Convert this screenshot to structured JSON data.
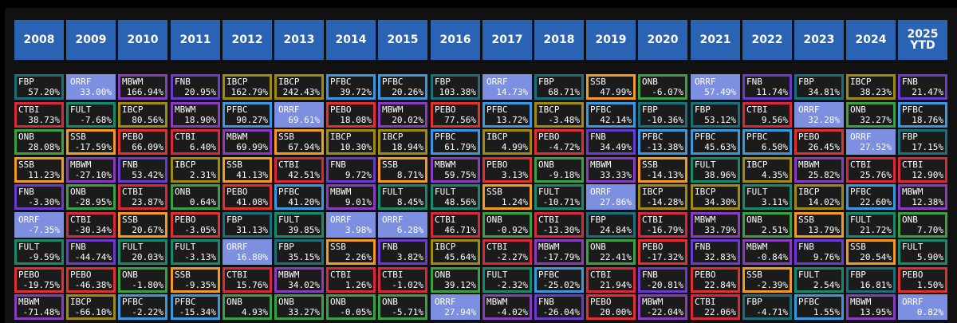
{
  "years": [
    "2008",
    "2009",
    "2010",
    "2011",
    "2012",
    "2013",
    "2014",
    "2015",
    "2016",
    "2017",
    "2018",
    "2019",
    "2020",
    "2021",
    "2022",
    "2023",
    "2024",
    "2025\nYTD"
  ],
  "ticker_colors": {
    "FBP": "#1a6f7a",
    "CTBI": "#d8283c",
    "ONB": "#3aa040",
    "SSB": "#f49a1c",
    "FNB": "#6b3ad0",
    "ORRF": "#7d8fe0",
    "FULT": "#178a6e",
    "PEBO": "#e03030",
    "MBWM": "#8a3cc0",
    "IBCP": "#a08a10",
    "PFBC": "#3a98e0"
  },
  "columns": [
    [
      [
        "FBP",
        "57.20%"
      ],
      [
        "CTBI",
        "38.73%"
      ],
      [
        "ONB",
        "28.08%"
      ],
      [
        "SSB",
        "11.23%"
      ],
      [
        "FNB",
        "-3.30%"
      ],
      [
        "ORRF",
        "-7.35%"
      ],
      [
        "FULT",
        "-9.59%"
      ],
      [
        "PEBO",
        "-19.75%"
      ],
      [
        "MBWM",
        "-71.48%"
      ]
    ],
    [
      [
        "ORRF",
        "33.00%"
      ],
      [
        "FULT",
        "-7.68%"
      ],
      [
        "SSB",
        "-17.59%"
      ],
      [
        "MBWM",
        "-27.10%"
      ],
      [
        "ONB",
        "-28.95%"
      ],
      [
        "CTBI",
        "-30.34%"
      ],
      [
        "FNB",
        "-44.74%"
      ],
      [
        "PEBO",
        "-46.38%"
      ],
      [
        "IBCP",
        "-66.10%"
      ]
    ],
    [
      [
        "MBWM",
        "166.94%"
      ],
      [
        "IBCP",
        "80.56%"
      ],
      [
        "PEBO",
        "66.09%"
      ],
      [
        "FNB",
        "53.42%"
      ],
      [
        "CTBI",
        "23.87%"
      ],
      [
        "SSB",
        "20.67%"
      ],
      [
        "FULT",
        "20.03%"
      ],
      [
        "ONB",
        "-1.80%"
      ],
      [
        "PFBC",
        "-2.22%"
      ]
    ],
    [
      [
        "FNB",
        "20.95%"
      ],
      [
        "MBWM",
        "18.90%"
      ],
      [
        "CTBI",
        "6.40%"
      ],
      [
        "IBCP",
        "2.31%"
      ],
      [
        "ONB",
        "0.64%"
      ],
      [
        "PEBO",
        "-3.05%"
      ],
      [
        "FULT",
        "-3.13%"
      ],
      [
        "SSB",
        "-9.35%"
      ],
      [
        "PFBC",
        "-15.34%"
      ]
    ],
    [
      [
        "IBCP",
        "162.79%"
      ],
      [
        "PFBC",
        "90.27%"
      ],
      [
        "MBWM",
        "69.99%"
      ],
      [
        "SSB",
        "41.13%"
      ],
      [
        "PEBO",
        "41.08%"
      ],
      [
        "FBP",
        "31.13%"
      ],
      [
        "ORRF",
        "16.80%"
      ],
      [
        "CTBI",
        "15.76%"
      ],
      [
        "ONB",
        "4.93%"
      ]
    ],
    [
      [
        "IBCP",
        "242.43%"
      ],
      [
        "ORRF",
        "69.61%"
      ],
      [
        "SSB",
        "67.94%"
      ],
      [
        "CTBI",
        "42.51%"
      ],
      [
        "PFBC",
        "41.20%"
      ],
      [
        "FULT",
        "39.85%"
      ],
      [
        "FBP",
        "35.15%"
      ],
      [
        "MBWM",
        "34.02%"
      ],
      [
        "ONB",
        "33.27%"
      ]
    ],
    [
      [
        "PFBC",
        "39.72%"
      ],
      [
        "PEBO",
        "18.08%"
      ],
      [
        "IBCP",
        "10.30%"
      ],
      [
        "FNB",
        "9.72%"
      ],
      [
        "MBWM",
        "9.01%"
      ],
      [
        "ORRF",
        "3.98%"
      ],
      [
        "SSB",
        "2.26%"
      ],
      [
        "CTBI",
        "1.26%"
      ],
      [
        "ONB",
        "-0.05%"
      ]
    ],
    [
      [
        "PFBC",
        "20.26%"
      ],
      [
        "MBWM",
        "20.02%"
      ],
      [
        "IBCP",
        "18.94%"
      ],
      [
        "SSB",
        "8.71%"
      ],
      [
        "FULT",
        "8.45%"
      ],
      [
        "ORRF",
        "6.28%"
      ],
      [
        "FNB",
        "3.82%"
      ],
      [
        "CTBI",
        "-1.02%"
      ],
      [
        "ONB",
        "-5.71%"
      ]
    ],
    [
      [
        "FBP",
        "103.38%"
      ],
      [
        "PEBO",
        "77.56%"
      ],
      [
        "PFBC",
        "61.79%"
      ],
      [
        "MBWM",
        "59.75%"
      ],
      [
        "FULT",
        "48.56%"
      ],
      [
        "CTBI",
        "46.71%"
      ],
      [
        "IBCP",
        "45.64%"
      ],
      [
        "ONB",
        "39.12%"
      ],
      [
        "ORRF",
        "27.94%"
      ]
    ],
    [
      [
        "ORRF",
        "14.73%"
      ],
      [
        "PFBC",
        "13.72%"
      ],
      [
        "IBCP",
        "4.99%"
      ],
      [
        "PEBO",
        "3.13%"
      ],
      [
        "SSB",
        "1.24%"
      ],
      [
        "ONB",
        "-0.92%"
      ],
      [
        "CTBI",
        "-2.27%"
      ],
      [
        "FULT",
        "-2.32%"
      ],
      [
        "MBWM",
        "-4.02%"
      ]
    ],
    [
      [
        "FBP",
        "68.71%"
      ],
      [
        "IBCP",
        "-3.48%"
      ],
      [
        "PEBO",
        "-4.72%"
      ],
      [
        "ONB",
        "-9.18%"
      ],
      [
        "FULT",
        "-10.71%"
      ],
      [
        "CTBI",
        "-13.30%"
      ],
      [
        "MBWM",
        "-17.79%"
      ],
      [
        "PFBC",
        "-25.02%"
      ],
      [
        "FNB",
        "-26.04%"
      ]
    ],
    [
      [
        "SSB",
        "47.99%"
      ],
      [
        "PFBC",
        "42.14%"
      ],
      [
        "FNB",
        "34.49%"
      ],
      [
        "MBWM",
        "33.33%"
      ],
      [
        "ORRF",
        "27.86%"
      ],
      [
        "FBP",
        "24.84%"
      ],
      [
        "ONB",
        "22.41%"
      ],
      [
        "CTBI",
        "21.94%"
      ],
      [
        "PEBO",
        "20.00%"
      ]
    ],
    [
      [
        "ONB",
        "-6.07%"
      ],
      [
        "FBP",
        "-10.36%"
      ],
      [
        "PFBC",
        "-13.38%"
      ],
      [
        "SSB",
        "-14.13%"
      ],
      [
        "IBCP",
        "-14.28%"
      ],
      [
        "CTBI",
        "-16.79%"
      ],
      [
        "PEBO",
        "-17.32%"
      ],
      [
        "FNB",
        "-20.81%"
      ],
      [
        "MBWM",
        "-22.04%"
      ]
    ],
    [
      [
        "ORRF",
        "57.49%"
      ],
      [
        "FBP",
        "53.12%"
      ],
      [
        "PFBC",
        "45.63%"
      ],
      [
        "FULT",
        "38.96%"
      ],
      [
        "IBCP",
        "34.30%"
      ],
      [
        "MBWM",
        "33.79%"
      ],
      [
        "FNB",
        "32.83%"
      ],
      [
        "PEBO",
        "22.84%"
      ],
      [
        "CTBI",
        "22.06%"
      ]
    ],
    [
      [
        "FNB",
        "11.74%"
      ],
      [
        "CTBI",
        "9.56%"
      ],
      [
        "PFBC",
        "6.50%"
      ],
      [
        "IBCP",
        "4.35%"
      ],
      [
        "FULT",
        "3.11%"
      ],
      [
        "ONB",
        "2.51%"
      ],
      [
        "MBWM",
        "-0.84%"
      ],
      [
        "SSB",
        "-2.39%"
      ],
      [
        "FBP",
        "-4.71%"
      ]
    ],
    [
      [
        "FBP",
        "34.81%"
      ],
      [
        "ORRF",
        "32.28%"
      ],
      [
        "PEBO",
        "26.45%"
      ],
      [
        "MBWM",
        "25.82%"
      ],
      [
        "IBCP",
        "14.02%"
      ],
      [
        "SSB",
        "13.79%"
      ],
      [
        "FNB",
        "9.76%"
      ],
      [
        "FULT",
        "2.54%"
      ],
      [
        "PFBC",
        "1.55%"
      ]
    ],
    [
      [
        "IBCP",
        "38.23%"
      ],
      [
        "ONB",
        "32.27%"
      ],
      [
        "ORRF",
        "27.52%"
      ],
      [
        "CTBI",
        "25.76%"
      ],
      [
        "PFBC",
        "22.60%"
      ],
      [
        "FULT",
        "21.72%"
      ],
      [
        "SSB",
        "20.54%"
      ],
      [
        "FBP",
        "16.81%"
      ],
      [
        "MBWM",
        "13.95%"
      ]
    ],
    [
      [
        "FNB",
        "21.47%"
      ],
      [
        "PFBC",
        "18.76%"
      ],
      [
        "FBP",
        "17.15%"
      ],
      [
        "CTBI",
        "12.90%"
      ],
      [
        "MBWM",
        "12.38%"
      ],
      [
        "ONB",
        "7.70%"
      ],
      [
        "FULT",
        "5.90%"
      ],
      [
        "PEBO",
        "1.50%"
      ],
      [
        "ORRF",
        "0.82%"
      ]
    ]
  ]
}
